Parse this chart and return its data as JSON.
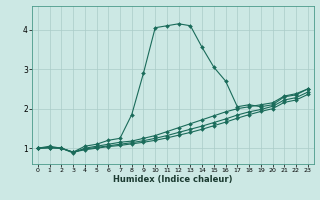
{
  "title": "",
  "xlabel": "Humidex (Indice chaleur)",
  "bg_color": "#cce8e4",
  "line_color": "#1a6b5a",
  "grid_color": "#aaccc8",
  "xlim": [
    -0.5,
    23.5
  ],
  "ylim": [
    0.6,
    4.6
  ],
  "xticks": [
    0,
    1,
    2,
    3,
    4,
    5,
    6,
    7,
    8,
    9,
    10,
    11,
    12,
    13,
    14,
    15,
    16,
    17,
    18,
    19,
    20,
    21,
    22,
    23
  ],
  "yticks": [
    1,
    2,
    3,
    4
  ],
  "series": [
    {
      "x": [
        0,
        1,
        2,
        3,
        4,
        5,
        6,
        7,
        8,
        9,
        10,
        11,
        12,
        13,
        14,
        15,
        16,
        17,
        18,
        19,
        20,
        21,
        22,
        23
      ],
      "y": [
        1.0,
        1.05,
        1.0,
        0.9,
        1.05,
        1.1,
        1.2,
        1.25,
        1.85,
        2.9,
        4.05,
        4.1,
        4.15,
        4.1,
        3.55,
        3.05,
        2.7,
        2.05,
        2.1,
        2.05,
        2.1,
        2.3,
        2.35,
        2.5
      ]
    },
    {
      "x": [
        0,
        1,
        2,
        3,
        4,
        5,
        6,
        7,
        8,
        9,
        10,
        11,
        12,
        13,
        14,
        15,
        16,
        17,
        18,
        19,
        20,
        21,
        22,
        23
      ],
      "y": [
        1.0,
        1.02,
        1.0,
        0.88,
        1.0,
        1.05,
        1.1,
        1.15,
        1.18,
        1.25,
        1.32,
        1.42,
        1.52,
        1.62,
        1.72,
        1.82,
        1.92,
        2.0,
        2.05,
        2.1,
        2.15,
        2.32,
        2.38,
        2.5
      ]
    },
    {
      "x": [
        0,
        1,
        2,
        3,
        4,
        5,
        6,
        7,
        8,
        9,
        10,
        11,
        12,
        13,
        14,
        15,
        16,
        17,
        18,
        19,
        20,
        21,
        22,
        23
      ],
      "y": [
        1.0,
        1.01,
        1.0,
        0.9,
        0.98,
        1.02,
        1.06,
        1.1,
        1.14,
        1.19,
        1.25,
        1.32,
        1.4,
        1.48,
        1.56,
        1.65,
        1.74,
        1.84,
        1.92,
        1.98,
        2.06,
        2.22,
        2.28,
        2.42
      ]
    },
    {
      "x": [
        0,
        1,
        2,
        3,
        4,
        5,
        6,
        7,
        8,
        9,
        10,
        11,
        12,
        13,
        14,
        15,
        16,
        17,
        18,
        19,
        20,
        21,
        22,
        23
      ],
      "y": [
        1.0,
        1.01,
        1.0,
        0.9,
        0.96,
        1.0,
        1.04,
        1.07,
        1.11,
        1.15,
        1.2,
        1.26,
        1.33,
        1.4,
        1.48,
        1.57,
        1.66,
        1.76,
        1.85,
        1.93,
        2.0,
        2.16,
        2.22,
        2.36
      ]
    }
  ]
}
